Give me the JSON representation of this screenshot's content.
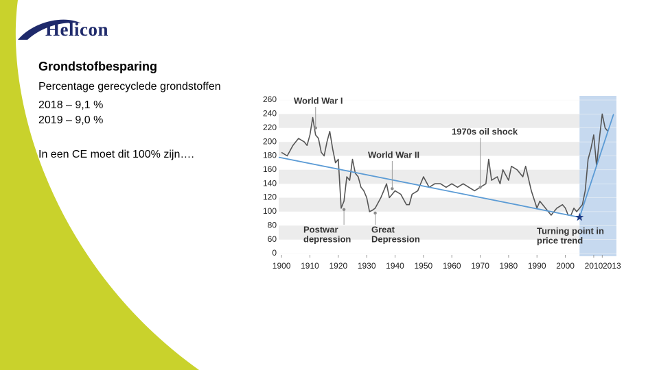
{
  "slide": {
    "logo": "Helicon",
    "title": "Grondstofbesparing",
    "lines": [
      "Percentage gerecyclede grondstoffen",
      "2018 – 9,1 %",
      "2019 – 9,0 %",
      "In een CE moet dit 100% zijn…."
    ]
  },
  "chart_data": {
    "type": "line",
    "xlim": [
      1899,
      2018
    ],
    "ylim": [
      0,
      260
    ],
    "xticks": [
      1900,
      1910,
      1920,
      1930,
      1940,
      1950,
      1960,
      1970,
      1980,
      1990,
      2000,
      2010,
      2013
    ],
    "yticks": [
      0,
      60,
      80,
      100,
      120,
      140,
      160,
      180,
      200,
      220,
      240,
      260
    ],
    "highlight": {
      "from": 2005,
      "to": 2018,
      "color": "#c6d9ef"
    },
    "series": [
      {
        "color": "#555555",
        "x": [
          1900,
          1902,
          1904,
          1906,
          1908,
          1909,
          1910,
          1911,
          1912,
          1913,
          1914,
          1915,
          1916,
          1917,
          1918,
          1919,
          1920,
          1921,
          1922,
          1923,
          1924,
          1925,
          1926,
          1927,
          1928,
          1929,
          1930,
          1931,
          1932,
          1933,
          1935,
          1936,
          1937,
          1938,
          1939,
          1940,
          1942,
          1944,
          1945,
          1946,
          1948,
          1950,
          1952,
          1954,
          1956,
          1958,
          1960,
          1962,
          1964,
          1966,
          1968,
          1970,
          1972,
          1973,
          1974,
          1976,
          1977,
          1978,
          1980,
          1981,
          1983,
          1985,
          1986,
          1988,
          1990,
          1991,
          1993,
          1995,
          1997,
          1999,
          2000,
          2001,
          2002,
          2003,
          2004,
          2006,
          2007,
          2008,
          2009,
          2010,
          2011,
          2012,
          2013,
          2014,
          2015
        ],
        "values": [
          185,
          180,
          195,
          205,
          200,
          195,
          210,
          235,
          210,
          205,
          185,
          180,
          200,
          215,
          190,
          170,
          175,
          105,
          115,
          150,
          145,
          175,
          155,
          150,
          135,
          130,
          120,
          100,
          102,
          105,
          120,
          130,
          140,
          120,
          125,
          130,
          125,
          110,
          110,
          125,
          130,
          150,
          135,
          140,
          140,
          135,
          140,
          135,
          140,
          135,
          130,
          135,
          140,
          175,
          145,
          150,
          140,
          160,
          145,
          165,
          160,
          150,
          165,
          130,
          105,
          115,
          105,
          95,
          105,
          110,
          105,
          95,
          95,
          105,
          100,
          110,
          130,
          175,
          190,
          210,
          165,
          205,
          240,
          220,
          215
        ]
      },
      {
        "color": "#5b9bd5",
        "x": [
          1899,
          2005
        ],
        "values": [
          178,
          92
        ]
      },
      {
        "color": "#5b9bd5",
        "x": [
          2005,
          2017
        ],
        "values": [
          92,
          240
        ]
      }
    ],
    "annotations": [
      {
        "lines": [
          "World War I"
        ],
        "x": 1912,
        "y": 220
      },
      {
        "lines": [
          "1970s oil shock"
        ],
        "x": 1970,
        "y": 135
      },
      {
        "lines": [
          "World War II"
        ],
        "x": 1939,
        "y": 133
      },
      {
        "lines": [
          "Postwar",
          "depression"
        ],
        "x": 1922,
        "y": 103
      },
      {
        "lines": [
          "Great",
          "Depression"
        ],
        "x": 1933,
        "y": 98
      },
      {
        "lines": [
          "Turning point in",
          "price trend"
        ],
        "x": 2005,
        "y": 92
      }
    ]
  }
}
